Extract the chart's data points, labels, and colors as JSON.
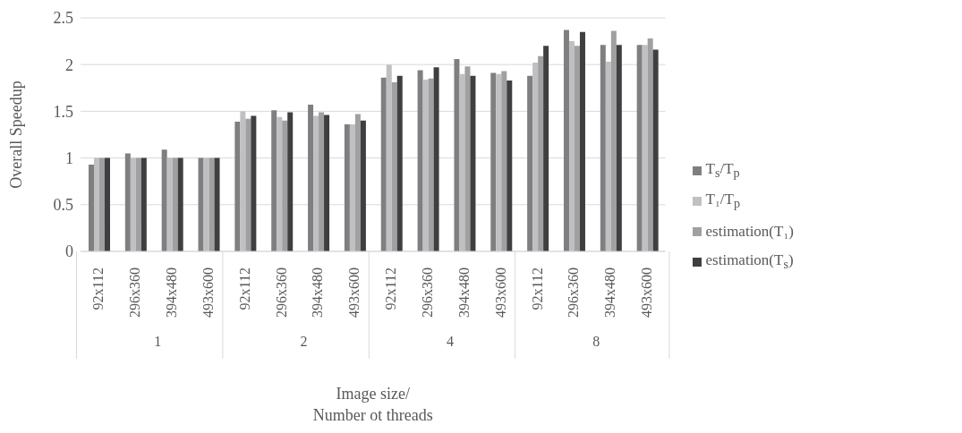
{
  "chart_data": {
    "type": "bar",
    "xlabel": "Image size/\nNumber ot threads",
    "ylabel": "Overall Speedup",
    "categories": [
      "92x112",
      "296x360",
      "394x480",
      "493x600",
      "92x112",
      "296x360",
      "394x480",
      "493x600",
      "92x112",
      "296x360",
      "394x480",
      "493x600",
      "92x112",
      "296x360",
      "394x480",
      "493x600"
    ],
    "annotations": [
      "1",
      "2",
      "4",
      "8"
    ],
    "series": [
      {
        "name": "T$_{s}$/T$_{p}$",
        "color": "#7f7f82",
        "values": [
          0.93,
          1.05,
          1.09,
          1,
          1.39,
          1.51,
          1.57,
          1.36,
          1.86,
          1.94,
          2.06,
          1.91,
          1.88,
          2.37,
          2.21,
          2.21
        ]
      },
      {
        "name": "T₁/T$_{p}$",
        "color": "#c0c0c3",
        "values": [
          1,
          1,
          1,
          1,
          1.5,
          1.44,
          1.45,
          1.36,
          2.0,
          1.84,
          1.9,
          1.9,
          2.02,
          2.25,
          2.03,
          2.21
        ]
      },
      {
        "name": "estimation(T₁)",
        "color": "#a0a0a3",
        "values": [
          1,
          1,
          1,
          1,
          1.42,
          1.4,
          1.49,
          1.47,
          1.81,
          1.85,
          1.98,
          1.93,
          2.09,
          2.2,
          2.36,
          2.28
        ]
      },
      {
        "name": "estimation(T$_{s}$)",
        "color": "#3f3f3f",
        "values": [
          1,
          1,
          1,
          1,
          1.45,
          1.49,
          1.46,
          1.4,
          1.88,
          1.97,
          1.88,
          1.83,
          2.2,
          2.35,
          2.21,
          2.16
        ]
      }
    ],
    "ylim": [
      0,
      2.5
    ],
    "yticks": [
      0,
      0.5,
      1,
      1.5,
      2,
      2.5
    ],
    "grid": "y",
    "legend": "right"
  }
}
